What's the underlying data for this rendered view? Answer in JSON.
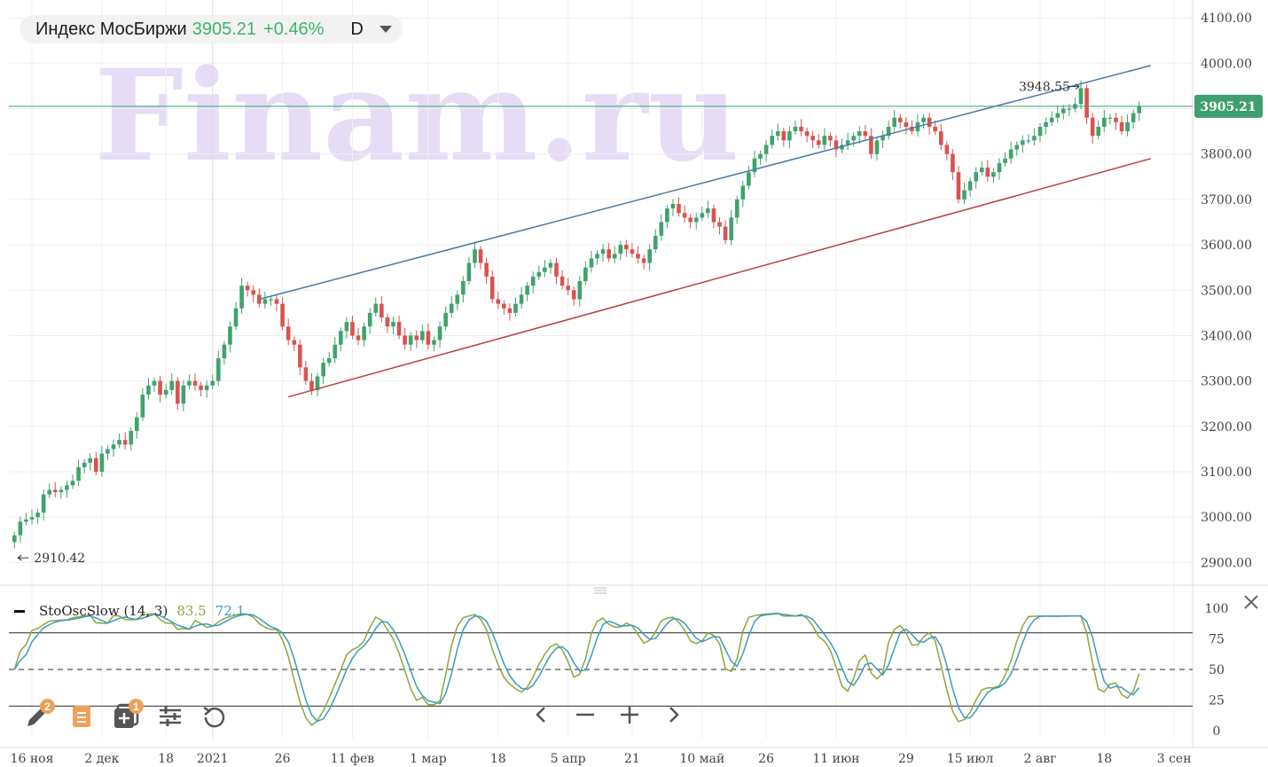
{
  "header": {
    "instrument": "Индекс МосБиржи",
    "price": "3905.21",
    "change": "+0.46%",
    "timeframe": "D"
  },
  "watermark": "Finam.ru",
  "colors": {
    "up": "#3fa36b",
    "down": "#d9534f",
    "channel_upper": "#4a78a8",
    "channel_lower": "#b8403a",
    "price_line": "#3f9f6f",
    "stoch_k": "#8ca63a",
    "stoch_d": "#3a9bc1",
    "badge": "#f0a05a"
  },
  "indicator": {
    "name": "StoOscSlow (14, 3)",
    "k_value": "83.5",
    "d_value": "72.1"
  },
  "toolbar": {
    "draw_badge": "2",
    "add_badge": "1"
  },
  "chart_data": {
    "type": "candlestick",
    "price_axis": {
      "range": [
        2850,
        4110
      ],
      "ticks": [
        "4100.00",
        "4000.00",
        "3900.00",
        "3800.00",
        "3700.00",
        "3600.00",
        "3500.00",
        "3400.00",
        "3300.00",
        "3200.00",
        "3100.00",
        "3000.00",
        "2900.00"
      ]
    },
    "x_labels": [
      {
        "label": "16 ноя",
        "bar": 3
      },
      {
        "label": "2 дек",
        "bar": 15
      },
      {
        "label": "18",
        "bar": 26
      },
      {
        "label": "2021",
        "bar": 34
      },
      {
        "label": "26",
        "bar": 46
      },
      {
        "label": "11 фев",
        "bar": 58
      },
      {
        "label": "1 мар",
        "bar": 71
      },
      {
        "label": "18",
        "bar": 83
      },
      {
        "label": "5 апр",
        "bar": 95
      },
      {
        "label": "21",
        "bar": 106
      },
      {
        "label": "10 май",
        "bar": 118
      },
      {
        "label": "26",
        "bar": 129
      },
      {
        "label": "11 июн",
        "bar": 141
      },
      {
        "label": "29",
        "bar": 153
      },
      {
        "label": "15 июл",
        "bar": 164
      },
      {
        "label": "2 авг",
        "bar": 176
      },
      {
        "label": "18",
        "bar": 187
      },
      {
        "label": "3 сен",
        "bar": 199
      }
    ],
    "closes": [
      2960,
      2990,
      2995,
      3000,
      3010,
      3050,
      3060,
      3055,
      3060,
      3070,
      3080,
      3110,
      3120,
      3130,
      3100,
      3140,
      3150,
      3160,
      3170,
      3160,
      3190,
      3220,
      3270,
      3290,
      3300,
      3270,
      3280,
      3300,
      3250,
      3290,
      3300,
      3290,
      3280,
      3290,
      3300,
      3350,
      3380,
      3420,
      3460,
      3510,
      3500,
      3490,
      3470,
      3480,
      3480,
      3470,
      3420,
      3390,
      3380,
      3330,
      3300,
      3280,
      3310,
      3340,
      3350,
      3380,
      3410,
      3430,
      3400,
      3390,
      3420,
      3450,
      3470,
      3440,
      3420,
      3430,
      3400,
      3380,
      3400,
      3390,
      3410,
      3380,
      3390,
      3420,
      3450,
      3470,
      3490,
      3520,
      3560,
      3590,
      3560,
      3530,
      3480,
      3470,
      3460,
      3450,
      3470,
      3490,
      3510,
      3530,
      3540,
      3550,
      3560,
      3530,
      3510,
      3500,
      3480,
      3520,
      3550,
      3570,
      3580,
      3590,
      3570,
      3580,
      3600,
      3590,
      3580,
      3570,
      3560,
      3590,
      3620,
      3650,
      3680,
      3690,
      3670,
      3660,
      3650,
      3660,
      3670,
      3680,
      3650,
      3640,
      3610,
      3660,
      3700,
      3730,
      3760,
      3790,
      3800,
      3820,
      3840,
      3850,
      3830,
      3850,
      3860,
      3850,
      3840,
      3830,
      3820,
      3840,
      3830,
      3810,
      3820,
      3830,
      3840,
      3850,
      3840,
      3800,
      3830,
      3840,
      3860,
      3880,
      3870,
      3860,
      3850,
      3870,
      3880,
      3860,
      3850,
      3820,
      3800,
      3760,
      3700,
      3720,
      3740,
      3760,
      3770,
      3750,
      3760,
      3780,
      3790,
      3810,
      3820,
      3830,
      3830,
      3840,
      3860,
      3870,
      3880,
      3890,
      3900,
      3900,
      3910,
      3945,
      3880,
      3840,
      3860,
      3880,
      3880,
      3870,
      3850,
      3870,
      3890,
      3905
    ],
    "annotations": {
      "high": "3948.55",
      "low": "2910.42",
      "last": "3905.21"
    },
    "trend_channel": {
      "upper": [
        {
          "bar": 42,
          "price": 3480
        },
        {
          "bar": 195,
          "price": 3995
        }
      ],
      "lower": [
        {
          "bar": 47,
          "price": 3265
        },
        {
          "bar": 195,
          "price": 3790
        }
      ]
    },
    "stochastic": {
      "range": [
        0,
        100
      ],
      "ticks": [
        "100",
        "75",
        "50",
        "25",
        "0"
      ],
      "levels": [
        80,
        50,
        20
      ]
    }
  }
}
